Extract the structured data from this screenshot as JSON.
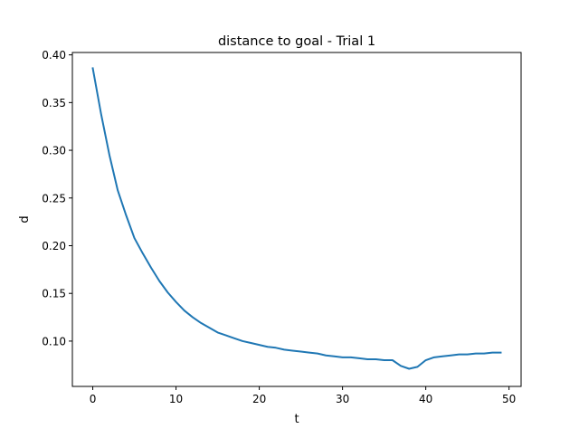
{
  "chart_data": {
    "type": "line",
    "title": "distance to goal - Trial 1",
    "xlabel": "t",
    "ylabel": "d",
    "xlim": [
      -2.45,
      51.45
    ],
    "ylim": [
      0.0525,
      0.4025
    ],
    "xticks": [
      0,
      10,
      20,
      30,
      40,
      50
    ],
    "xtick_labels": [
      "0",
      "10",
      "20",
      "30",
      "40",
      "50"
    ],
    "yticks": [
      0.1,
      0.15,
      0.2,
      0.25,
      0.3,
      0.35,
      0.4
    ],
    "ytick_labels": [
      "0.10",
      "0.15",
      "0.20",
      "0.25",
      "0.30",
      "0.35",
      "0.40"
    ],
    "grid": false,
    "line_color": "#1f77b4",
    "series": [
      {
        "x": [
          0,
          1,
          2,
          3,
          4,
          5,
          6,
          7,
          8,
          9,
          10,
          11,
          12,
          13,
          14,
          15,
          16,
          17,
          18,
          19,
          20,
          21,
          22,
          23,
          24,
          25,
          26,
          27,
          28,
          29,
          30,
          31,
          32,
          33,
          34,
          35,
          36,
          37,
          38,
          39,
          40,
          41,
          42,
          43,
          44,
          45,
          46,
          47,
          48,
          49
        ],
        "values": [
          0.386,
          0.338,
          0.295,
          0.258,
          0.232,
          0.208,
          0.192,
          0.177,
          0.163,
          0.151,
          0.141,
          0.132,
          0.125,
          0.119,
          0.114,
          0.109,
          0.106,
          0.103,
          0.1,
          0.098,
          0.096,
          0.094,
          0.093,
          0.091,
          0.09,
          0.089,
          0.088,
          0.087,
          0.085,
          0.084,
          0.083,
          0.083,
          0.082,
          0.081,
          0.081,
          0.08,
          0.08,
          0.074,
          0.071,
          0.073,
          0.08,
          0.083,
          0.084,
          0.085,
          0.086,
          0.086,
          0.087,
          0.087,
          0.088,
          0.088
        ]
      }
    ]
  }
}
